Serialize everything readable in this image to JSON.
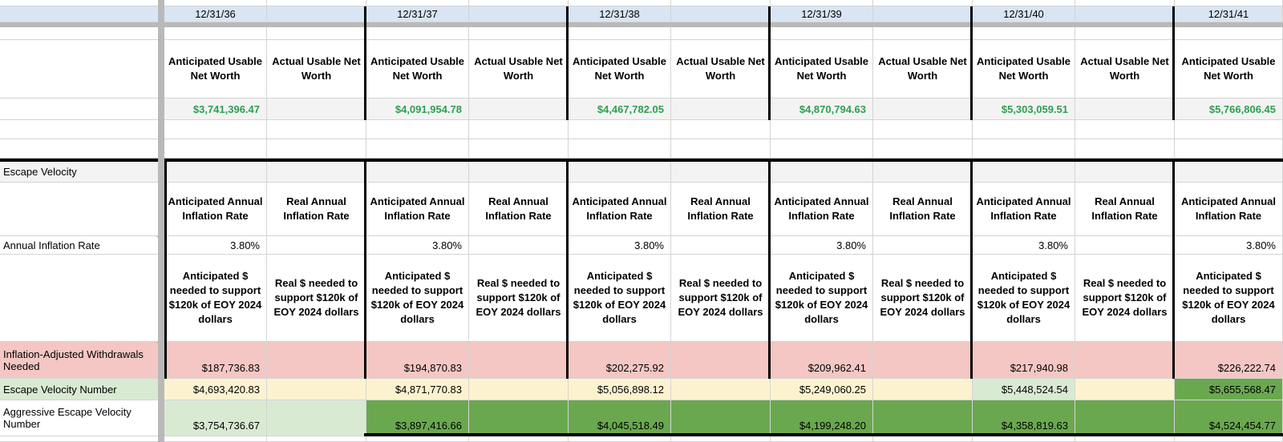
{
  "dates": [
    "12/31/36",
    "12/31/37",
    "12/31/38",
    "12/31/39",
    "12/31/40",
    "12/31/41"
  ],
  "net_worth": {
    "anticipated_header": "Anticipated Usable Net Worth",
    "actual_header": "Actual Usable Net Worth",
    "anticipated_values": [
      "$3,741,396.47",
      "$4,091,954.78",
      "$4,467,782.05",
      "$4,870,794.63",
      "$5,303,059.51",
      "$5,766,806.45"
    ]
  },
  "escape_velocity": {
    "section_title": "Escape Velocity",
    "inflation_label": "Annual Inflation Rate",
    "anticipated_inflation_header": "Anticipated Annual Inflation Rate",
    "real_inflation_header": "Real Annual Inflation Rate",
    "inflation_values": [
      "3.80%",
      "3.80%",
      "3.80%",
      "3.80%",
      "3.80%",
      "3.80%"
    ],
    "anticipated_support_header": "Anticipated $ needed to support $120k of EOY 2024 dollars",
    "real_support_header": "Real $ needed to support $120k of EOY 2024 dollars",
    "withdrawals_label": "Inflation-Adjusted Withdrawals Needed",
    "withdrawals_values": [
      "$187,736.83",
      "$194,870.83",
      "$202,275.92",
      "$209,962.41",
      "$217,940.98",
      "$226,222.74"
    ],
    "ev_number_label": "Escape Velocity Number",
    "ev_number_values": [
      "$4,693,420.83",
      "$4,871,770.83",
      "$5,056,898.12",
      "$5,249,060.25",
      "$5,448,524.54",
      "$5,655,568.47"
    ],
    "aggressive_label": "Aggressive Escape Velocity Number",
    "aggressive_values": [
      "$3,754,736.67",
      "$3,897,416.66",
      "$4,045,518.49",
      "$4,199,248.20",
      "$4,358,819.63",
      "$4,524,454.77"
    ]
  },
  "colors": {
    "frozen_band": "#b9b9b9",
    "gridline": "#d4d4d4",
    "date_row_blue": "#d9e5f3",
    "shaded_row": "#f3f3f3",
    "withdrawals_pink": "#f4c7c4",
    "ev_yellow": "#fdf2d0",
    "light_green": "#d9ead3",
    "dark_green": "#6aa84f",
    "value_green": "#2f9e4f",
    "note_marker_orange": "#f5a623",
    "thick_border": "#000000"
  }
}
